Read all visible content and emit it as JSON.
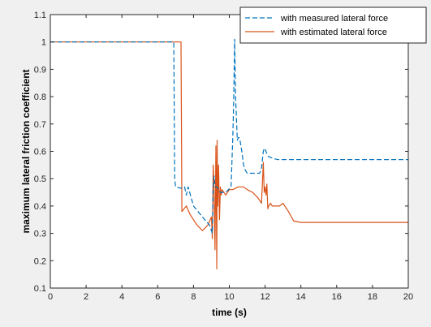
{
  "chart_data": {
    "type": "line",
    "title": "",
    "xlabel": "time (s)",
    "ylabel": "maximum lateral friction coefficient",
    "xlim": [
      0,
      20
    ],
    "ylim": [
      0.1,
      1.1
    ],
    "x_ticks": [
      "0",
      "2",
      "4",
      "6",
      "8",
      "10",
      "12",
      "14",
      "16",
      "18",
      "20"
    ],
    "y_ticks": [
      "0.1",
      "0.2",
      "0.3",
      "0.4",
      "0.5",
      "0.6",
      "0.7",
      "0.8",
      "0.9",
      "1",
      "1.1"
    ],
    "grid": false,
    "legend_position": "top-right",
    "series": [
      {
        "name": "with measured lateral force",
        "color": "#0072BD",
        "line_style": "dashed",
        "x": [
          0,
          6.9,
          6.95,
          7.0,
          7.3,
          7.5,
          7.6,
          7.7,
          8.0,
          8.5,
          8.9,
          9.05,
          9.1,
          9.15,
          9.2,
          9.3,
          9.4,
          9.5,
          9.8,
          10.1,
          10.2,
          10.25,
          10.3,
          10.35,
          10.45,
          10.5,
          10.55,
          10.6,
          10.7,
          10.8,
          10.9,
          11.0,
          11.3,
          11.7,
          11.8,
          11.9,
          11.95,
          12.0,
          12.1,
          12.2,
          12.3,
          12.5,
          12.7,
          12.8,
          13.0,
          20
        ],
        "y": [
          1.0,
          1.0,
          0.5,
          0.47,
          0.465,
          0.47,
          0.44,
          0.47,
          0.4,
          0.36,
          0.33,
          0.3,
          0.48,
          0.51,
          0.47,
          0.47,
          0.46,
          0.45,
          0.45,
          0.47,
          0.66,
          0.8,
          1.01,
          0.8,
          0.64,
          0.65,
          0.65,
          0.64,
          0.6,
          0.55,
          0.53,
          0.52,
          0.52,
          0.52,
          0.54,
          0.6,
          0.61,
          0.61,
          0.59,
          0.58,
          0.578,
          0.573,
          0.57,
          0.57,
          0.57,
          0.57
        ]
      },
      {
        "name": "with estimated lateral force",
        "color": "#D95319",
        "line_style": "solid",
        "x": [
          0,
          7.3,
          7.35,
          7.6,
          7.8,
          8.0,
          8.2,
          8.5,
          8.8,
          9.0,
          9.05,
          9.1,
          9.15,
          9.2,
          9.25,
          9.3,
          9.32,
          9.35,
          9.4,
          9.45,
          9.5,
          9.55,
          9.6,
          9.7,
          9.8,
          9.9,
          10.0,
          10.2,
          10.5,
          10.8,
          11.0,
          11.3,
          11.6,
          11.8,
          11.9,
          11.95,
          12.0,
          12.05,
          12.1,
          12.15,
          12.2,
          12.3,
          12.4,
          12.6,
          12.8,
          13.0,
          13.1,
          13.3,
          13.6,
          14.0,
          20
        ],
        "y": [
          1.0,
          1.0,
          0.38,
          0.4,
          0.37,
          0.35,
          0.33,
          0.31,
          0.33,
          0.36,
          0.28,
          0.55,
          0.45,
          0.24,
          0.62,
          0.17,
          0.64,
          0.4,
          0.55,
          0.35,
          0.47,
          0.44,
          0.46,
          0.45,
          0.44,
          0.45,
          0.46,
          0.46,
          0.47,
          0.47,
          0.46,
          0.45,
          0.43,
          0.41,
          0.56,
          0.45,
          0.47,
          0.44,
          0.48,
          0.39,
          0.4,
          0.41,
          0.4,
          0.4,
          0.4,
          0.41,
          0.4,
          0.38,
          0.345,
          0.34,
          0.34
        ]
      }
    ]
  }
}
